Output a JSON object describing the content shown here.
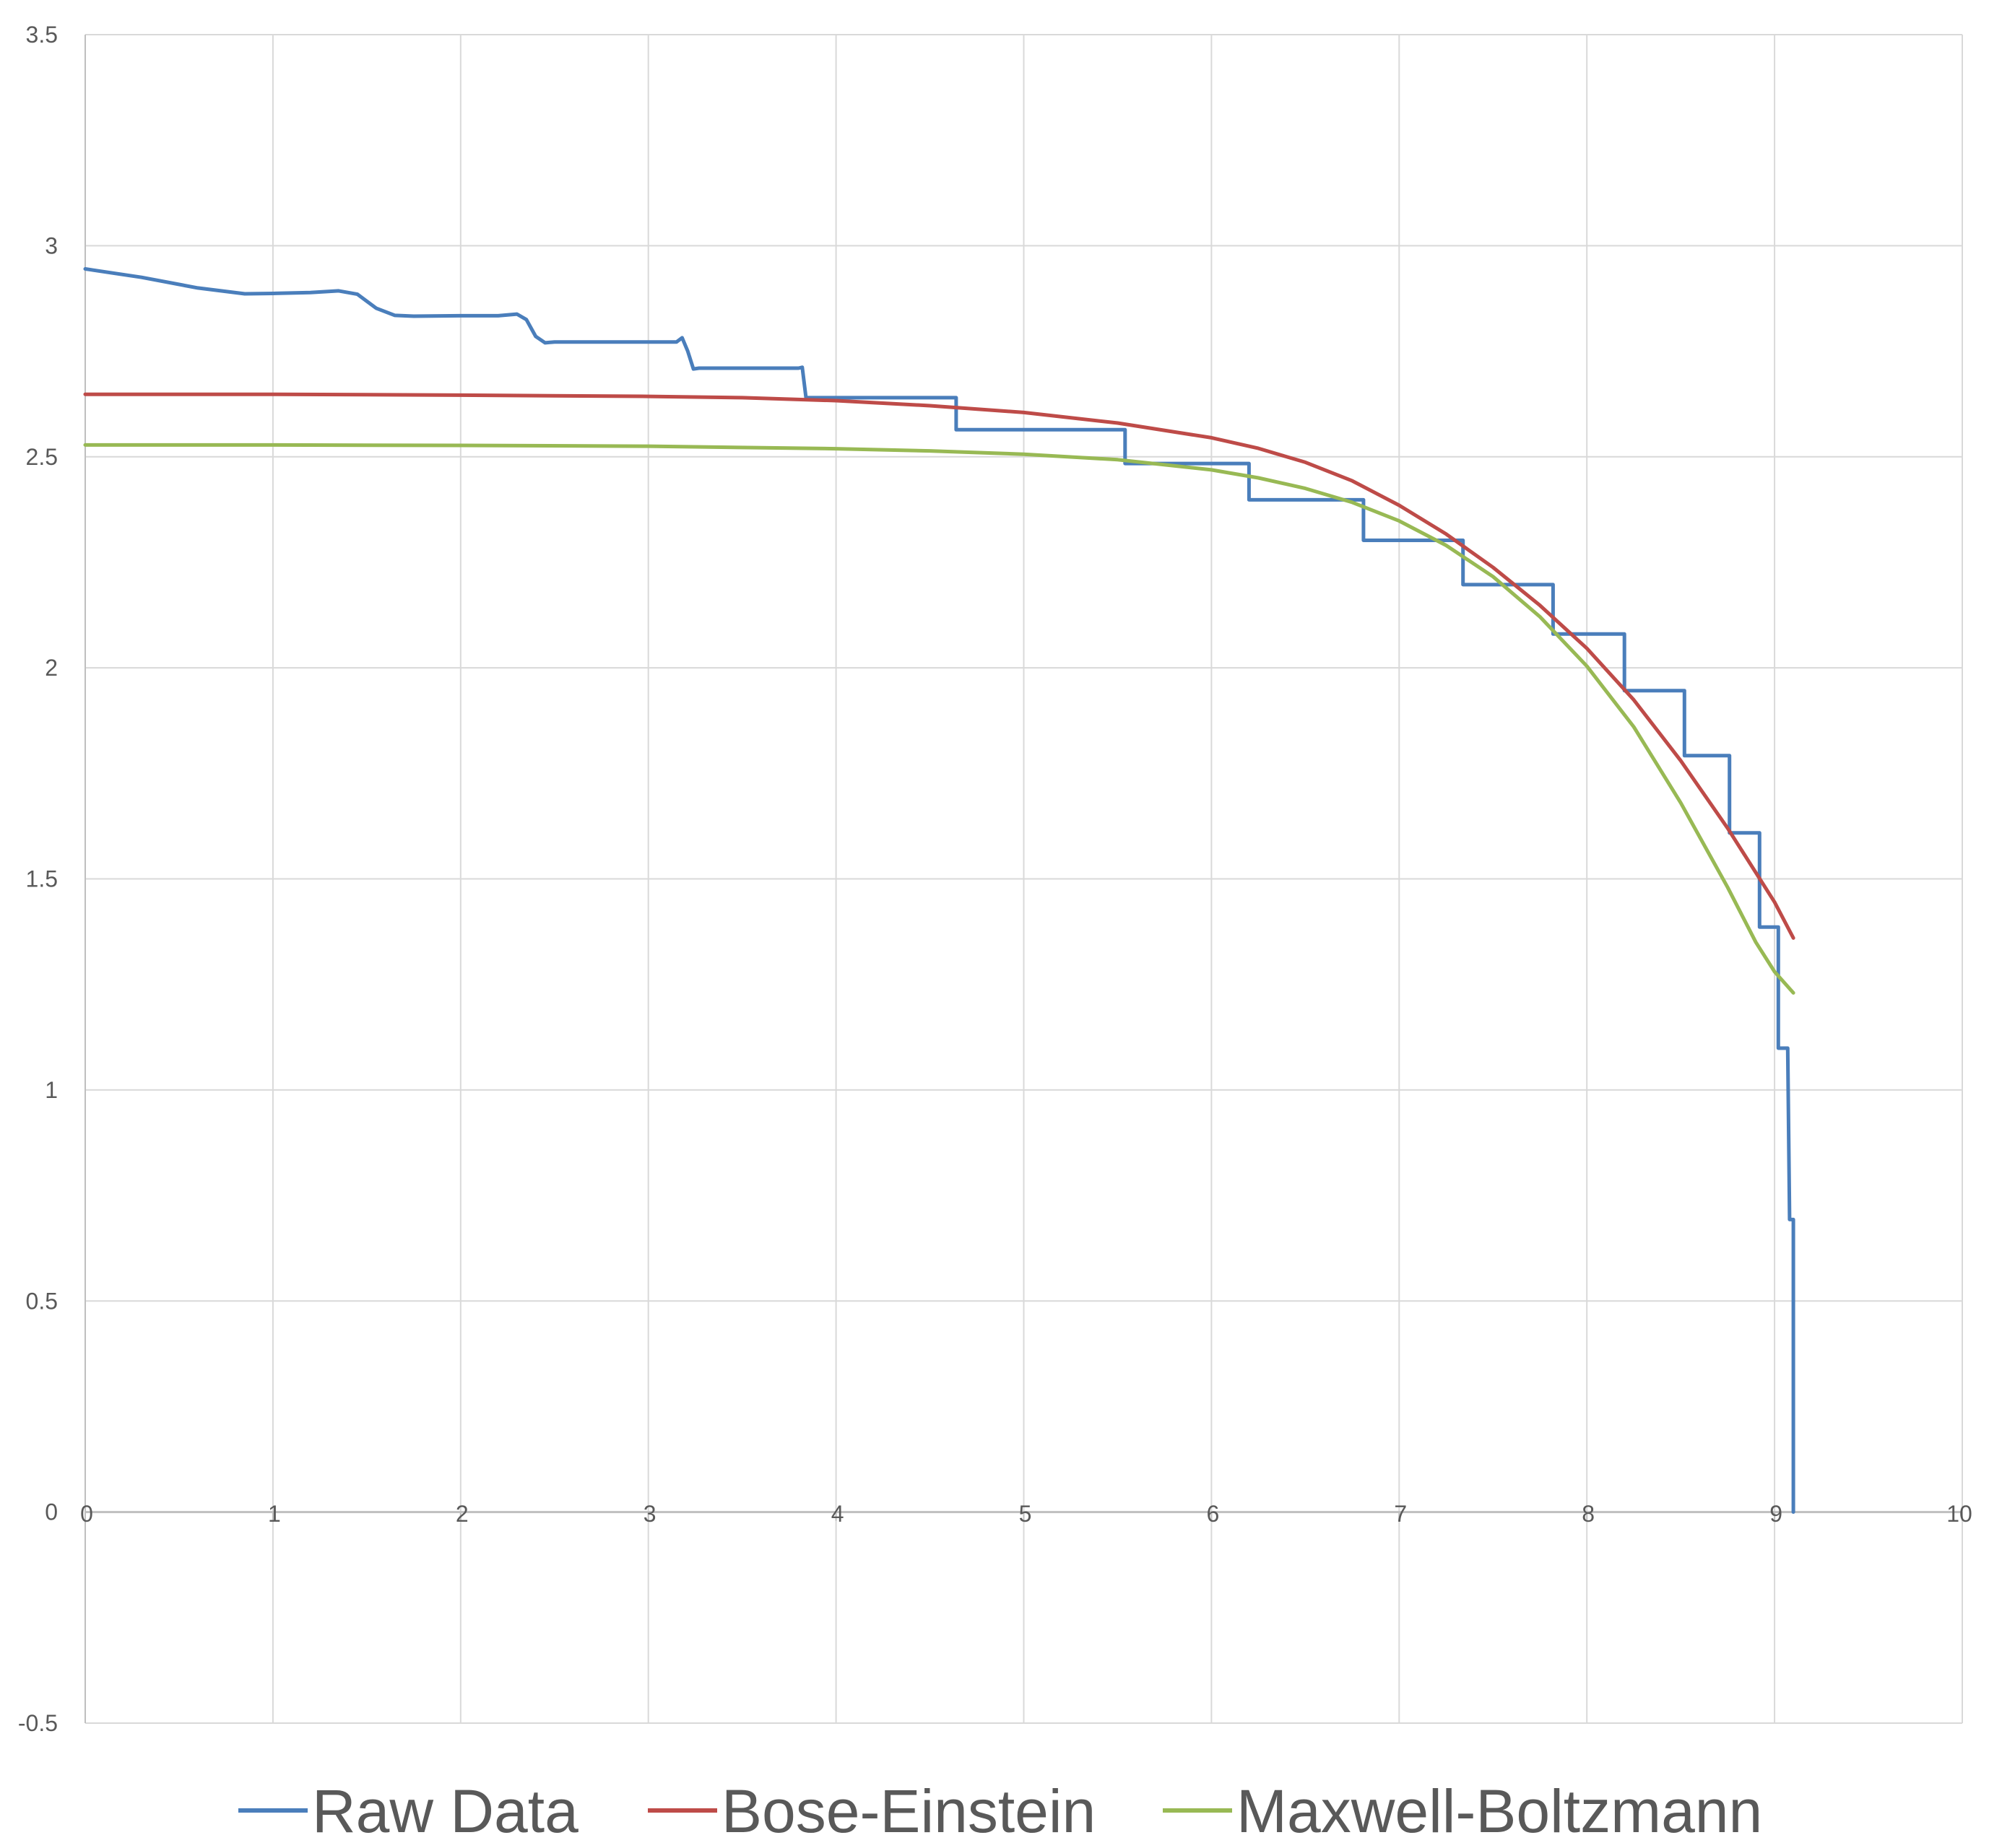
{
  "chart_data": {
    "type": "line",
    "title": "",
    "xlabel": "",
    "ylabel": "",
    "xlim": [
      0,
      10
    ],
    "ylim": [
      -0.5,
      3.5
    ],
    "x_ticks": [
      "0",
      "1",
      "2",
      "3",
      "4",
      "5",
      "6",
      "7",
      "8",
      "9",
      "10"
    ],
    "y_ticks": [
      "-0.5",
      "0",
      "0.5",
      "1",
      "1.5",
      "2",
      "2.5",
      "3",
      "3.5"
    ],
    "grid": true,
    "legend_position": "bottom",
    "series": [
      {
        "name": "Raw Data",
        "color": "#4a7ebb",
        "points": [
          [
            0,
            2.945
          ],
          [
            0.3,
            2.925
          ],
          [
            0.6,
            2.9
          ],
          [
            0.85,
            2.886
          ],
          [
            1.0,
            2.887
          ],
          [
            1.2,
            2.889
          ],
          [
            1.35,
            2.893
          ],
          [
            1.45,
            2.885
          ],
          [
            1.55,
            2.852
          ],
          [
            1.65,
            2.835
          ],
          [
            1.75,
            2.833
          ],
          [
            2.0,
            2.834
          ],
          [
            2.2,
            2.834
          ],
          [
            2.3,
            2.838
          ],
          [
            2.35,
            2.825
          ],
          [
            2.4,
            2.785
          ],
          [
            2.45,
            2.77
          ],
          [
            2.5,
            2.772
          ],
          [
            3.0,
            2.772
          ],
          [
            3.15,
            2.772
          ],
          [
            3.18,
            2.782
          ],
          [
            3.21,
            2.75
          ],
          [
            3.24,
            2.708
          ],
          [
            3.27,
            2.71
          ],
          [
            3.8,
            2.71
          ],
          [
            3.82,
            2.712
          ],
          [
            3.84,
            2.64
          ],
          [
            4.64,
            2.64
          ],
          [
            4.64,
            2.564
          ],
          [
            5.54,
            2.564
          ],
          [
            5.54,
            2.484
          ],
          [
            6.2,
            2.484
          ],
          [
            6.2,
            2.398
          ],
          [
            6.81,
            2.398
          ],
          [
            6.81,
            2.302
          ],
          [
            7.34,
            2.302
          ],
          [
            7.34,
            2.197
          ],
          [
            7.82,
            2.197
          ],
          [
            7.82,
            2.08
          ],
          [
            8.2,
            2.08
          ],
          [
            8.2,
            1.946
          ],
          [
            8.52,
            1.946
          ],
          [
            8.52,
            1.792
          ],
          [
            8.76,
            1.792
          ],
          [
            8.76,
            1.609
          ],
          [
            8.92,
            1.609
          ],
          [
            8.92,
            1.386
          ],
          [
            9.02,
            1.386
          ],
          [
            9.02,
            1.099
          ],
          [
            9.07,
            1.099
          ],
          [
            9.08,
            0.693
          ],
          [
            9.1,
            0.693
          ],
          [
            9.1,
            0.0
          ]
        ]
      },
      {
        "name": "Bose-Einstein",
        "color": "#be4b48",
        "points": [
          [
            0,
            2.648
          ],
          [
            1,
            2.648
          ],
          [
            2,
            2.646
          ],
          [
            3,
            2.643
          ],
          [
            3.5,
            2.64
          ],
          [
            4,
            2.633
          ],
          [
            4.5,
            2.621
          ],
          [
            5,
            2.605
          ],
          [
            5.5,
            2.58
          ],
          [
            6,
            2.545
          ],
          [
            6.25,
            2.52
          ],
          [
            6.5,
            2.487
          ],
          [
            6.75,
            2.443
          ],
          [
            7,
            2.385
          ],
          [
            7.25,
            2.317
          ],
          [
            7.5,
            2.238
          ],
          [
            7.75,
            2.148
          ],
          [
            8,
            2.046
          ],
          [
            8.25,
            1.924
          ],
          [
            8.5,
            1.78
          ],
          [
            8.75,
            1.62
          ],
          [
            9,
            1.445
          ],
          [
            9.1,
            1.36
          ]
        ]
      },
      {
        "name": "Maxwell-Boltzmann",
        "color": "#98b954",
        "points": [
          [
            0,
            2.528
          ],
          [
            1,
            2.528
          ],
          [
            2,
            2.527
          ],
          [
            3,
            2.525
          ],
          [
            4,
            2.519
          ],
          [
            4.5,
            2.514
          ],
          [
            5,
            2.506
          ],
          [
            5.5,
            2.493
          ],
          [
            6,
            2.469
          ],
          [
            6.25,
            2.45
          ],
          [
            6.5,
            2.425
          ],
          [
            6.75,
            2.392
          ],
          [
            7,
            2.348
          ],
          [
            7.25,
            2.29
          ],
          [
            7.5,
            2.216
          ],
          [
            7.75,
            2.121
          ],
          [
            8,
            2.004
          ],
          [
            8.25,
            1.86
          ],
          [
            8.5,
            1.68
          ],
          [
            8.75,
            1.48
          ],
          [
            8.9,
            1.35
          ],
          [
            9.0,
            1.28
          ],
          [
            9.1,
            1.23
          ]
        ]
      }
    ]
  }
}
